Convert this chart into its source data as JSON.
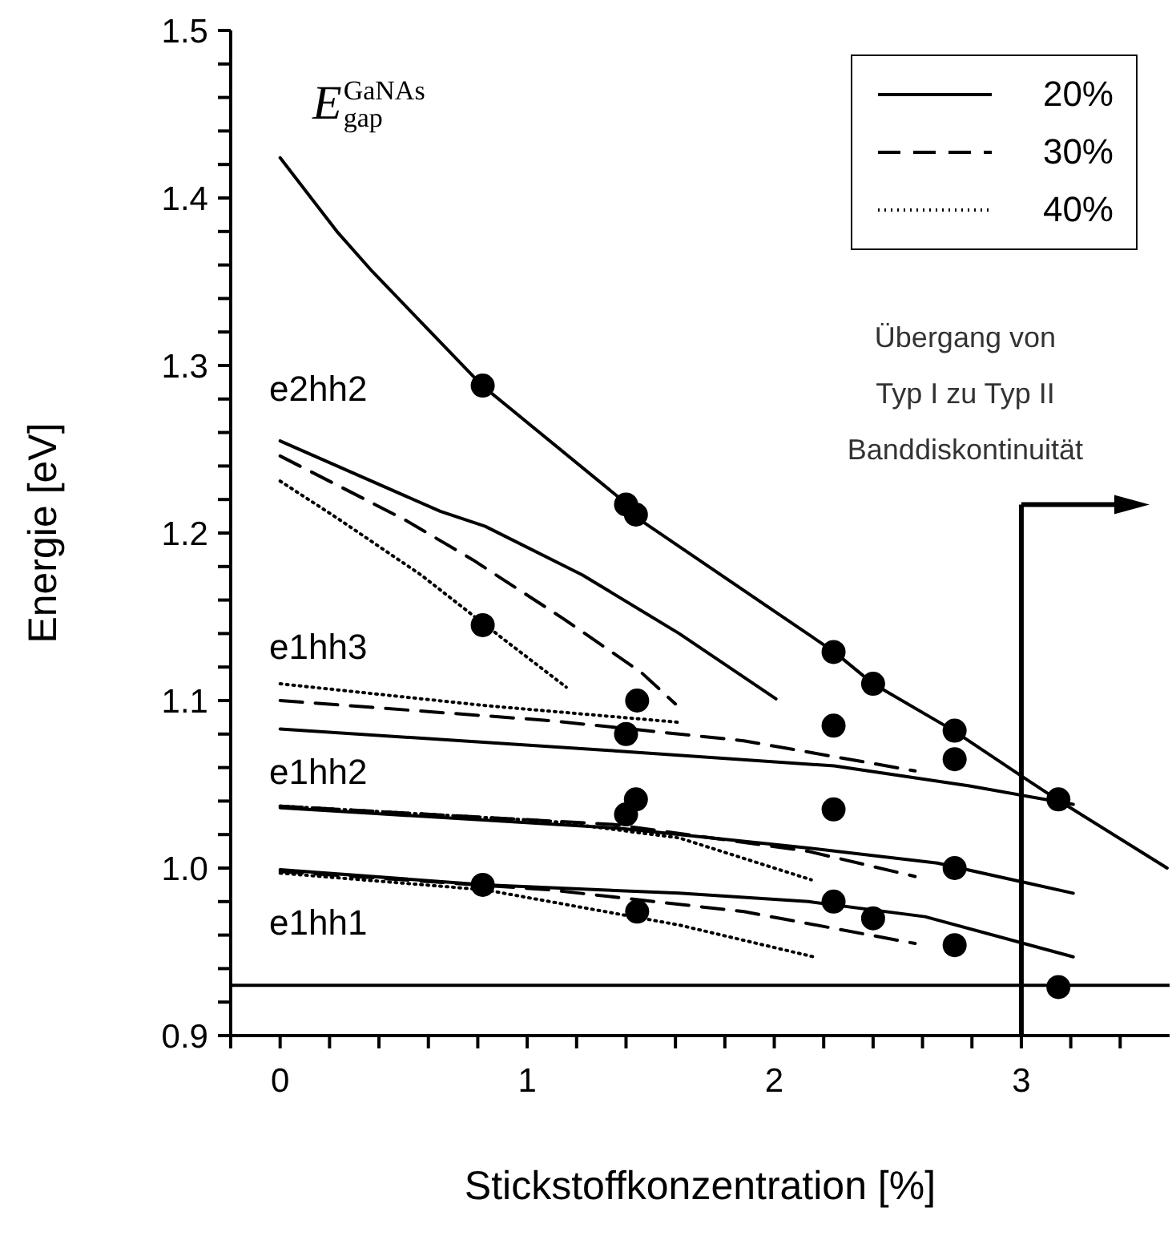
{
  "chart_data": {
    "type": "line",
    "xlabel": "Stickstoffkonzentration [%]",
    "ylabel": "Energie [eV]",
    "xlim": [
      -0.2,
      3.6
    ],
    "ylim": [
      0.9,
      1.5
    ],
    "xticks": [
      {
        "value": -0.2,
        "label": null
      },
      0,
      {
        "value": 0.2,
        "label": null
      },
      {
        "value": 0.4,
        "label": null
      },
      {
        "value": 0.6,
        "label": null
      },
      {
        "value": 0.8,
        "label": null
      },
      1,
      {
        "value": 1.2,
        "label": null
      },
      {
        "value": 1.4,
        "label": null
      },
      {
        "value": 1.6,
        "label": null
      },
      {
        "value": 1.8,
        "label": null
      },
      2,
      {
        "value": 2.2,
        "label": null
      },
      {
        "value": 2.4,
        "label": null
      },
      {
        "value": 2.6,
        "label": null
      },
      {
        "value": 2.8,
        "label": null
      },
      3,
      {
        "value": 3.2,
        "label": null
      },
      {
        "value": 3.4,
        "label": null
      }
    ],
    "yticks": [
      0.9,
      {
        "value": 0.92,
        "label": null
      },
      {
        "value": 0.94,
        "label": null
      },
      {
        "value": 0.96,
        "label": null
      },
      {
        "value": 0.98,
        "label": null
      },
      {
        "value": 1.0,
        "label": "1.0"
      },
      {
        "value": 1.02,
        "label": null
      },
      {
        "value": 1.04,
        "label": null
      },
      {
        "value": 1.06,
        "label": null
      },
      {
        "value": 1.08,
        "label": null
      },
      1.1,
      {
        "value": 1.12,
        "label": null
      },
      {
        "value": 1.14,
        "label": null
      },
      {
        "value": 1.16,
        "label": null
      },
      {
        "value": 1.18,
        "label": null
      },
      1.2,
      {
        "value": 1.22,
        "label": null
      },
      {
        "value": 1.24,
        "label": null
      },
      {
        "value": 1.26,
        "label": null
      },
      {
        "value": 1.28,
        "label": null
      },
      1.3,
      {
        "value": 1.32,
        "label": null
      },
      {
        "value": 1.34,
        "label": null
      },
      {
        "value": 1.36,
        "label": null
      },
      {
        "value": 1.38,
        "label": null
      },
      1.4,
      {
        "value": 1.42,
        "label": null
      },
      {
        "value": 1.44,
        "label": null
      },
      {
        "value": 1.46,
        "label": null
      },
      {
        "value": 1.48,
        "label": null
      },
      1.5
    ],
    "legend": "top right",
    "marker": "none",
    "series": [
      {
        "color": "#000000",
        "line_style": "solid",
        "x": [
          0,
          0.23,
          0.374,
          0.818,
          1.406,
          1.445,
          2.243,
          2.4,
          2.726,
          3.0,
          3.144,
          3.59
        ],
        "values": [
          1.424,
          1.38,
          1.356,
          1.288,
          1.217,
          1.209,
          1.129,
          1.11,
          1.082,
          1.055,
          1.041,
          1.0
        ]
      },
      {
        "name": "20%",
        "color": "#000000",
        "line_style": "solid",
        "x": [
          0,
          0.648,
          0.83,
          1.223,
          1.615,
          2.007
        ],
        "values": [
          1.255,
          1.213,
          1.204,
          1.175,
          1.14,
          1.101
        ]
      },
      {
        "name": "30%",
        "color": "#000000",
        "line_style": "dashed",
        "x": [
          0,
          0.504,
          0.78,
          1.145,
          1.46,
          1.6
        ],
        "values": [
          1.246,
          1.208,
          1.184,
          1.149,
          1.117,
          1.098
        ]
      },
      {
        "name": "40%",
        "color": "#000000",
        "line_style": "dotted",
        "x": [
          0,
          0.23,
          0.57,
          0.91,
          1.158
        ],
        "values": [
          1.231,
          1.209,
          1.175,
          1.136,
          1.108
        ]
      },
      {
        "color": "#000000",
        "line_style": "solid",
        "x": [
          0,
          1.354,
          2.243,
          2.79,
          3.21
        ],
        "values": [
          1.083,
          1.07,
          1.061,
          1.049,
          1.038
        ]
      },
      {
        "color": "#000000",
        "line_style": "dashed",
        "x": [
          0,
          1.093,
          1.877,
          2.57
        ],
        "values": [
          1.1,
          1.088,
          1.076,
          1.058
        ]
      },
      {
        "color": "#000000",
        "line_style": "dotted",
        "x": [
          0,
          0.83,
          1.615
        ],
        "values": [
          1.11,
          1.097,
          1.087
        ]
      },
      {
        "color": "#000000",
        "line_style": "solid",
        "x": [
          0,
          1.354,
          2.138,
          2.66,
          3.21
        ],
        "values": [
          1.036,
          1.024,
          1.012,
          1.003,
          0.985
        ]
      },
      {
        "color": "#000000",
        "line_style": "dashed",
        "x": [
          0,
          1.354,
          2.138,
          2.57
        ],
        "values": [
          1.037,
          1.026,
          1.01,
          0.995
        ]
      },
      {
        "color": "#000000",
        "line_style": "dotted",
        "x": [
          0,
          1.093,
          1.615,
          2.15
        ],
        "values": [
          1.037,
          1.028,
          1.018,
          0.993
        ]
      },
      {
        "color": "#000000",
        "line_style": "solid",
        "x": [
          0,
          0.83,
          1.615,
          2.138,
          2.61,
          3.21
        ],
        "values": [
          0.999,
          0.99,
          0.985,
          0.98,
          0.971,
          0.947
        ]
      },
      {
        "color": "#000000",
        "line_style": "dashed",
        "x": [
          0,
          1.093,
          1.877,
          2.57
        ],
        "values": [
          0.998,
          0.987,
          0.974,
          0.955
        ]
      },
      {
        "color": "#000000",
        "line_style": "dotted",
        "x": [
          0,
          0.83,
          1.615,
          2.16
        ],
        "values": [
          0.997,
          0.987,
          0.966,
          0.947
        ]
      },
      {
        "type": "scatter",
        "marker": "circle",
        "color": "#000000",
        "x": [
          0.82,
          1.4,
          1.44,
          2.24,
          2.4,
          2.73,
          2.73,
          3.15,
          0.82,
          1.445,
          1.4,
          2.24,
          1.44,
          1.4,
          2.24,
          2.73,
          0.82,
          1.445,
          2.24,
          2.4,
          2.73,
          3.15
        ],
        "values": [
          1.288,
          1.217,
          1.211,
          1.129,
          1.11,
          1.082,
          1.065,
          1.041,
          1.145,
          1.1,
          1.08,
          1.085,
          1.041,
          1.032,
          1.035,
          1.0,
          0.99,
          0.974,
          0.98,
          0.97,
          0.954,
          0.929
        ]
      }
    ],
    "ref_lines": [
      {
        "axis": "y",
        "value": 0.93,
        "color": "#000000"
      },
      {
        "axis": "x",
        "value": 3,
        "color": "#000000"
      }
    ],
    "annotations": [
      "E$_{gap}$$^{GaNAs}$",
      "e2hh2",
      "e1hh3",
      "e1hh2",
      "e1hh1",
      {
        "text": "Übergang von\nTyp I zu Typ II\nBanddiskontinuität",
        "x": 3,
        "y": 1.217
      }
    ]
  }
}
